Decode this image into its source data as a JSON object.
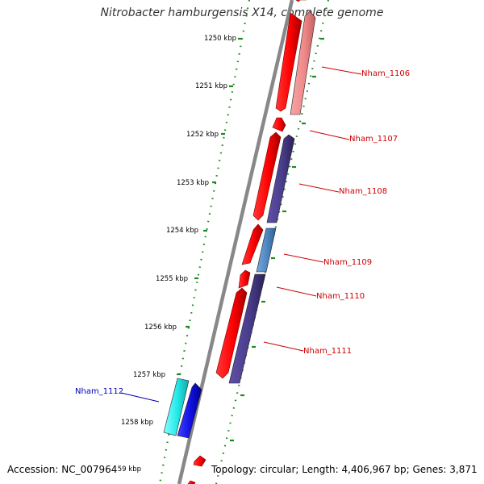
{
  "title": "Nitrobacter hamburgensis X14, complete genome",
  "accession": "Accession: NC_007964",
  "topology": "Topology: circular; Length: 4,406,967 bp; Genes: 3,871",
  "ticks": [
    "1250 kbp",
    "1251 kbp",
    "1252 kbp",
    "1253 kbp",
    "1254 kbp",
    "1255 kbp",
    "1256 kbp",
    "1257 kbp",
    "1258 kbp",
    "1259 kbp"
  ],
  "genes": [
    {
      "label": "Nham_1106",
      "label_color": "#cc0000"
    },
    {
      "label": "Nham_1107",
      "label_color": "#cc0000"
    },
    {
      "label": "Nham_1108",
      "label_color": "#cc0000"
    },
    {
      "label": "Nham_1109",
      "label_color": "#cc0000"
    },
    {
      "label": "Nham_1110",
      "label_color": "#cc0000"
    },
    {
      "label": "Nham_1111",
      "label_color": "#cc0000"
    },
    {
      "label": "Nham_1112",
      "label_color": "#0000bb"
    }
  ],
  "colors": {
    "cds": "#ff0000",
    "cds_light": "#f08a8a",
    "purple": "#4a3d8c",
    "steel": "#4f86c0",
    "cyan": "#22e8e8",
    "blue": "#1010e0",
    "backbone": "#888888",
    "dots": "#1e8a1e"
  }
}
